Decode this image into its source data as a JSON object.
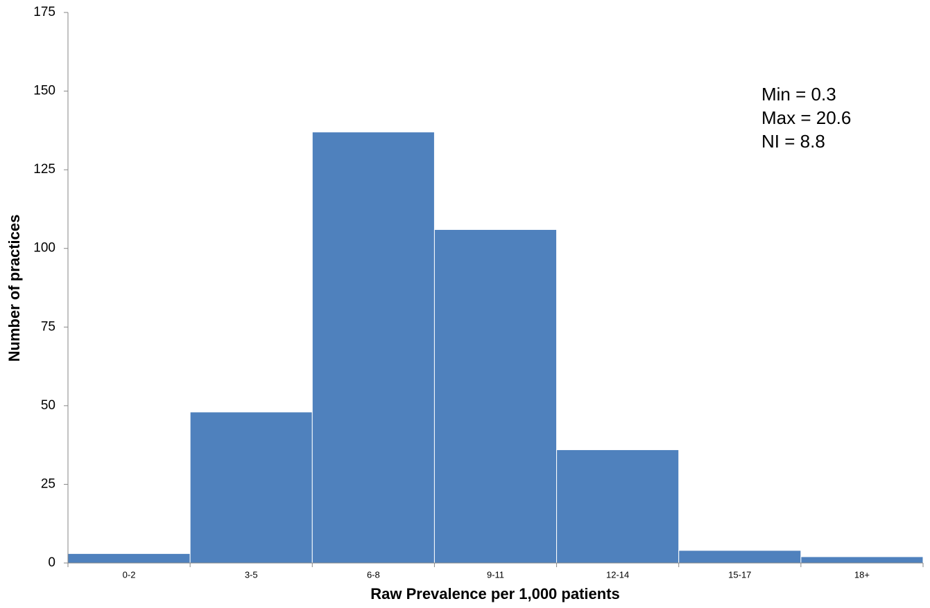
{
  "chart_data": {
    "type": "bar",
    "x_label": "Raw Prevalence per 1,000 patients",
    "y_label": "Number of practices",
    "categories": [
      "0-2",
      "3-5",
      "6-8",
      "9-11",
      "12-14",
      "15-17",
      "18+"
    ],
    "values": [
      3,
      48,
      137,
      106,
      36,
      4,
      2
    ],
    "color": "#4f81bd",
    "ylim": [
      0,
      175
    ],
    "yticks": [
      0,
      25,
      50,
      75,
      100,
      125,
      150,
      175
    ],
    "annotations": [
      "Min = 0.3",
      "Max = 20.6",
      "NI = 8.8"
    ]
  }
}
